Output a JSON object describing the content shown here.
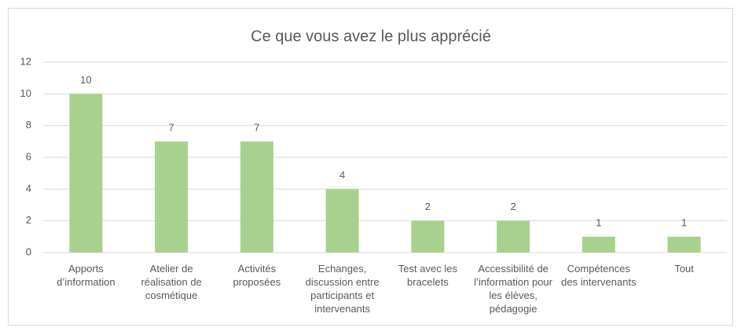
{
  "chart_data": {
    "type": "bar",
    "title": "Ce que vous avez le plus apprécié",
    "categories": [
      "Apports d’information",
      "Atelier de réalisation de cosmétique",
      "Activités proposées",
      "Echanges, discussion entre participants et intervenants",
      "Test avec les bracelets",
      "Accessibilité de l’information pour les élèves, pédagogie",
      "Compétences des intervenants",
      "Tout"
    ],
    "values": [
      10,
      7,
      7,
      4,
      2,
      2,
      1,
      1
    ],
    "color": "#a9d18e",
    "ylim": [
      0,
      12
    ],
    "yticks": [
      0,
      2,
      4,
      6,
      8,
      10,
      12
    ],
    "grid": true
  }
}
